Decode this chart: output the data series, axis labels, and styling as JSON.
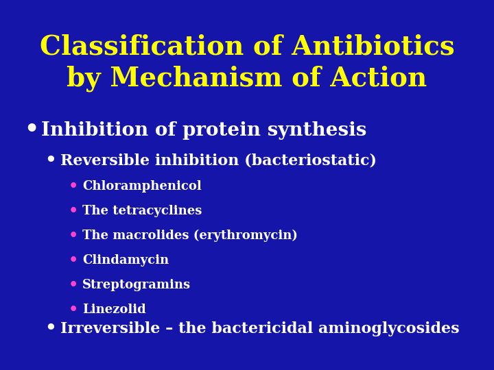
{
  "background_color": "#1515aa",
  "title_line1": "Classification of Antibiotics",
  "title_line2": "by Mechanism of Action",
  "title_color": "#ffff00",
  "title_fontsize": 28,
  "bullet1_text": "Inhibition of protein synthesis",
  "bullet1_color": "#ffffff",
  "bullet1_fontsize": 20,
  "bullet2_text": "Reversible inhibition (bacteriostatic)",
  "bullet2_color": "#ffffff",
  "bullet2_fontsize": 16,
  "sub_items": [
    "Chloramphenicol",
    "The tetracyclines",
    "The macrolides (erythromycin)",
    "Clindamycin",
    "Streptogramins",
    "Linezolid"
  ],
  "sub_item_color": "#ffffff",
  "sub_item_bullet_color": "#ff44cc",
  "sub_item_fontsize": 13,
  "bullet3_text": "Irreversible – the bactericidal aminoglycosides",
  "bullet3_color": "#ffffff",
  "bullet3_fontsize": 16,
  "white_bullet": "#ffffff"
}
